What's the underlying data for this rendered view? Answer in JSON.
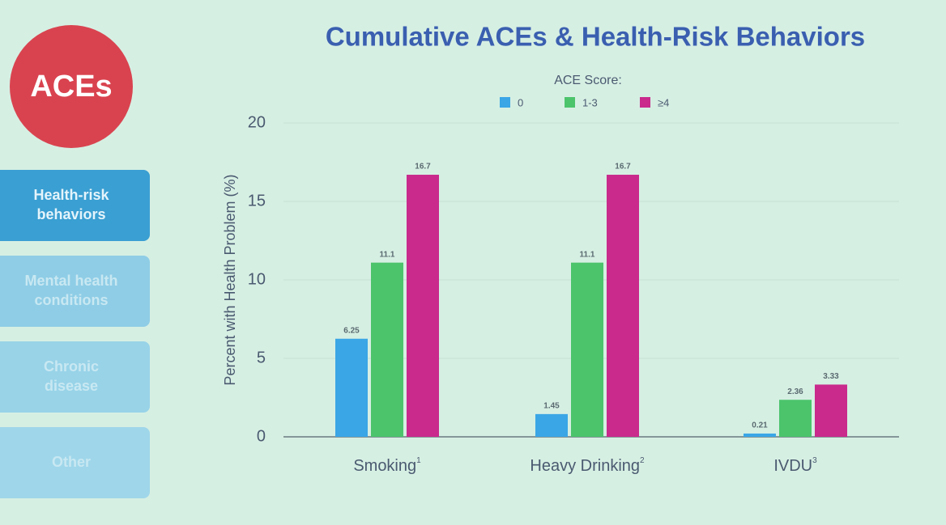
{
  "sidebar": {
    "badge": "ACEs",
    "items": [
      {
        "lines": [
          "Health-risk",
          "behaviors"
        ]
      },
      {
        "lines": [
          "Mental health",
          "conditions"
        ]
      },
      {
        "lines": [
          "Chronic",
          "disease"
        ]
      },
      {
        "lines": [
          "Other"
        ]
      }
    ]
  },
  "chart_data": {
    "type": "bar",
    "title": "Cumulative ACEs & Health-Risk Behaviors",
    "legend_title": "ACE Score:",
    "y_label": "Percent with Health Problem (%)",
    "categories": [
      "Smoking",
      "Heavy Drinking",
      "IVDU"
    ],
    "footnote_marks": [
      "1",
      "2",
      "3"
    ],
    "series": [
      {
        "name": "0",
        "color": "#3aa6e6",
        "values": [
          6.25,
          1.45,
          0.21
        ]
      },
      {
        "name": "1-3",
        "color": "#4cc46c",
        "values": [
          11.1,
          11.1,
          2.36
        ]
      },
      {
        "name": "≥4",
        "color": "#c92a8c",
        "values": [
          16.7,
          16.7,
          3.33
        ]
      }
    ],
    "ylim": [
      0,
      20
    ],
    "yticks": [
      0,
      5,
      10,
      15,
      20
    ],
    "grid": true
  }
}
